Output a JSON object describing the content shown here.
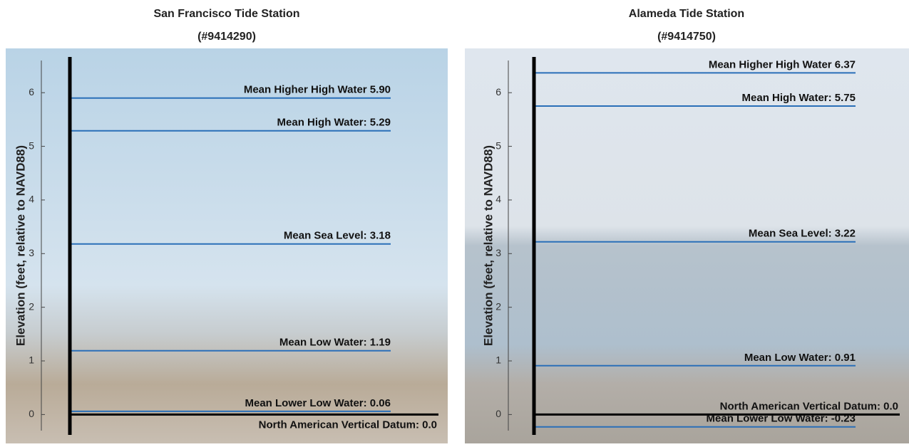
{
  "chart_data": [
    {
      "type": "datum",
      "title": [
        "San Francisco Tide Station",
        "(#9414290)"
      ],
      "ylabel": "Elevation (feet, relative to NAVD88)",
      "categories": [
        "Mean Higher High Water 5.90",
        "Mean High Water: 5.29",
        "Mean Sea Level: 3.18",
        "Mean Low Water: 1.19",
        "Mean Lower Low Water: 0.06",
        "North American Vertical Datum: 0.0"
      ],
      "values": [
        5.9,
        5.29,
        3.18,
        1.19,
        0.06,
        0.0
      ],
      "colors": [
        "#2a6fb8",
        "#2a6fb8",
        "#2a6fb8",
        "#2a6fb8",
        "#2a6fb8",
        "#000000"
      ],
      "ylim": [
        -0.3,
        6.6
      ],
      "yticks": [
        0,
        1,
        2,
        3,
        4,
        5,
        6
      ]
    },
    {
      "type": "datum",
      "title": [
        "Alameda Tide Station",
        "(#9414750)"
      ],
      "ylabel": "Elevation (feet, relative to NAVD88)",
      "categories": [
        "Mean Higher High Water 6.37",
        "Mean High Water: 5.75",
        "Mean Sea Level: 3.22",
        "Mean Low Water: 0.91",
        "North American Vertical Datum: 0.0",
        "Mean Lower Low Water: -0.23"
      ],
      "values": [
        6.37,
        5.75,
        3.22,
        0.91,
        0.0,
        -0.23
      ],
      "colors": [
        "#2a6fb8",
        "#2a6fb8",
        "#2a6fb8",
        "#2a6fb8",
        "#000000",
        "#2a6fb8"
      ],
      "ylim": [
        -0.3,
        6.6
      ],
      "yticks": [
        0,
        1,
        2,
        3,
        4,
        5,
        6
      ]
    }
  ]
}
